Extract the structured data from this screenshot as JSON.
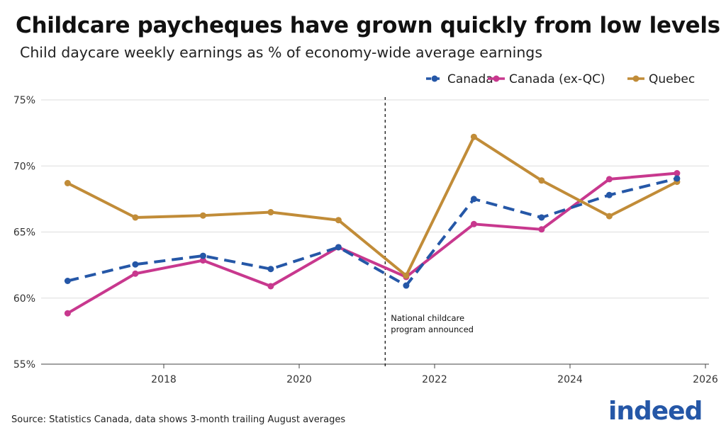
{
  "title": "Childcare paycheques have grown quickly from low levels",
  "subtitle": "Child daycare weekly earnings as % of economy-wide average earnings",
  "source": "Source: Statistics Canada, data shows 3-month trailing August averages",
  "logo": "indeed",
  "chart_data": {
    "type": "line",
    "title": "Childcare paycheques have grown quickly from low levels",
    "xlabel": "",
    "ylabel": "",
    "xlim": [
      2016.5,
      2026
    ],
    "ylim": [
      55,
      75
    ],
    "x_ticks": [
      "2018",
      "2020",
      "2022",
      "2024",
      "2026"
    ],
    "y_ticks": [
      "55%",
      "60%",
      "65%",
      "70%",
      "75%"
    ],
    "grid": "horizontal",
    "legend_position": "top-right",
    "x": [
      2016.58,
      2017.58,
      2018.58,
      2019.58,
      2020.58,
      2021.58,
      2022.58,
      2023.58,
      2024.58,
      2025.58
    ],
    "series": [
      {
        "name": "Canada",
        "color": "#2557a7",
        "dashed": true,
        "values": [
          61.3,
          62.55,
          63.2,
          62.2,
          63.85,
          60.95,
          67.5,
          66.1,
          67.8,
          69.05
        ]
      },
      {
        "name": "Canada (ex-QC)",
        "color": "#c8388e",
        "dashed": false,
        "values": [
          58.85,
          61.85,
          62.85,
          60.9,
          63.85,
          61.6,
          65.6,
          65.2,
          69.0,
          69.45
        ]
      },
      {
        "name": "Quebec",
        "color": "#c18c38",
        "dashed": false,
        "values": [
          68.7,
          66.1,
          66.25,
          66.5,
          65.9,
          61.7,
          72.2,
          68.9,
          66.2,
          68.8
        ]
      }
    ],
    "annotation": {
      "x": 2021.27,
      "text_lines": [
        "National childcare",
        "program announced"
      ]
    }
  }
}
